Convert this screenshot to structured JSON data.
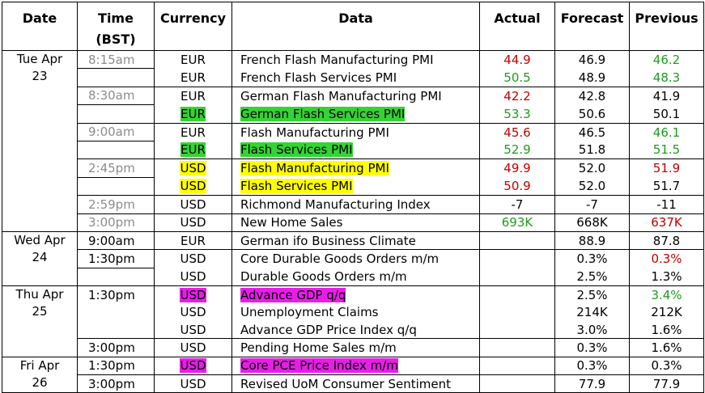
{
  "headers": {
    "date": "Date",
    "time": "Time (BST)",
    "currency": "Currency",
    "data": "Data",
    "actual": "Actual",
    "forecast": "Forecast",
    "previous": "Previous"
  },
  "colors": {
    "highlight_green": "#33d433",
    "highlight_yellow": "#ffff00",
    "highlight_magenta": "#e81ee8",
    "text_red": "#c00000",
    "text_green": "#1e9a1e",
    "time_gray": "#8c8c8c"
  },
  "days": [
    {
      "date": "Tue Apr 23",
      "rows": [
        {
          "time": "8:15am",
          "currency": "EUR",
          "data": "French Flash Manufacturing PMI",
          "actual": "44.9",
          "forecast": "46.9",
          "previous": "46.2"
        },
        {
          "time": "",
          "currency": "EUR",
          "data": "French Flash Services PMI",
          "actual": "50.5",
          "forecast": "48.9",
          "previous": "48.3"
        },
        {
          "time": "8:30am",
          "currency": "EUR",
          "data": "German Flash Manufacturing PMI",
          "actual": "42.2",
          "forecast": "42.8",
          "previous": "41.9"
        },
        {
          "time": "",
          "currency": "EUR",
          "data": "German Flash Services PMI",
          "actual": "53.3",
          "forecast": "50.6",
          "previous": "50.1"
        },
        {
          "time": "9:00am",
          "currency": "EUR",
          "data": "Flash Manufacturing PMI",
          "actual": "45.6",
          "forecast": "46.5",
          "previous": "46.1"
        },
        {
          "time": "",
          "currency": "EUR",
          "data": "Flash Services PMI",
          "actual": "52.9",
          "forecast": "51.8",
          "previous": "51.5"
        },
        {
          "time": "2:45pm",
          "currency": "USD",
          "data": "Flash Manufacturing PMI",
          "actual": "49.9",
          "forecast": "52.0",
          "previous": "51.9"
        },
        {
          "time": "",
          "currency": "USD",
          "data": "Flash Services PMI",
          "actual": "50.9",
          "forecast": "52.0",
          "previous": "51.7"
        },
        {
          "time": "2:59pm",
          "currency": "USD",
          "data": "Richmond Manufacturing Index",
          "actual": "-7",
          "forecast": "-7",
          "previous": "-11"
        },
        {
          "time": "3:00pm",
          "currency": "USD",
          "data": "New Home Sales",
          "actual": "693K",
          "forecast": "668K",
          "previous": "637K"
        }
      ]
    },
    {
      "date": "Wed Apr 24",
      "rows": [
        {
          "time": "9:00am",
          "currency": "EUR",
          "data": "German ifo Business Climate",
          "actual": "",
          "forecast": "88.9",
          "previous": "87.8"
        },
        {
          "time": "1:30pm",
          "currency": "USD",
          "data": "Core Durable Goods Orders m/m",
          "actual": "",
          "forecast": "0.3%",
          "previous": "0.3%"
        },
        {
          "time": "",
          "currency": "USD",
          "data": "Durable Goods Orders m/m",
          "actual": "",
          "forecast": "2.5%",
          "previous": "1.3%"
        }
      ]
    },
    {
      "date": "Thu Apr 25",
      "rows": [
        {
          "time": "1:30pm",
          "currency": "USD",
          "data": "Advance GDP q/q",
          "actual": "",
          "forecast": "2.5%",
          "previous": "3.4%"
        },
        {
          "time": "",
          "currency": "USD",
          "data": "Unemployment Claims",
          "actual": "",
          "forecast": "214K",
          "previous": "212K"
        },
        {
          "time": "",
          "currency": "USD",
          "data": "Advance GDP Price Index q/q",
          "actual": "",
          "forecast": "3.0%",
          "previous": "1.6%"
        },
        {
          "time": "3:00pm",
          "currency": "USD",
          "data": "Pending Home Sales m/m",
          "actual": "",
          "forecast": "0.3%",
          "previous": "1.6%"
        }
      ]
    },
    {
      "date": "Fri Apr 26",
      "rows": [
        {
          "time": "1:30pm",
          "currency": "USD",
          "data": "Core PCE Price Index m/m",
          "actual": "",
          "forecast": "0.3%",
          "previous": "0.3%"
        },
        {
          "time": "3:00pm",
          "currency": "USD",
          "data": "Revised UoM Consumer Sentiment",
          "actual": "",
          "forecast": "77.9",
          "previous": "77.9"
        }
      ]
    }
  ]
}
